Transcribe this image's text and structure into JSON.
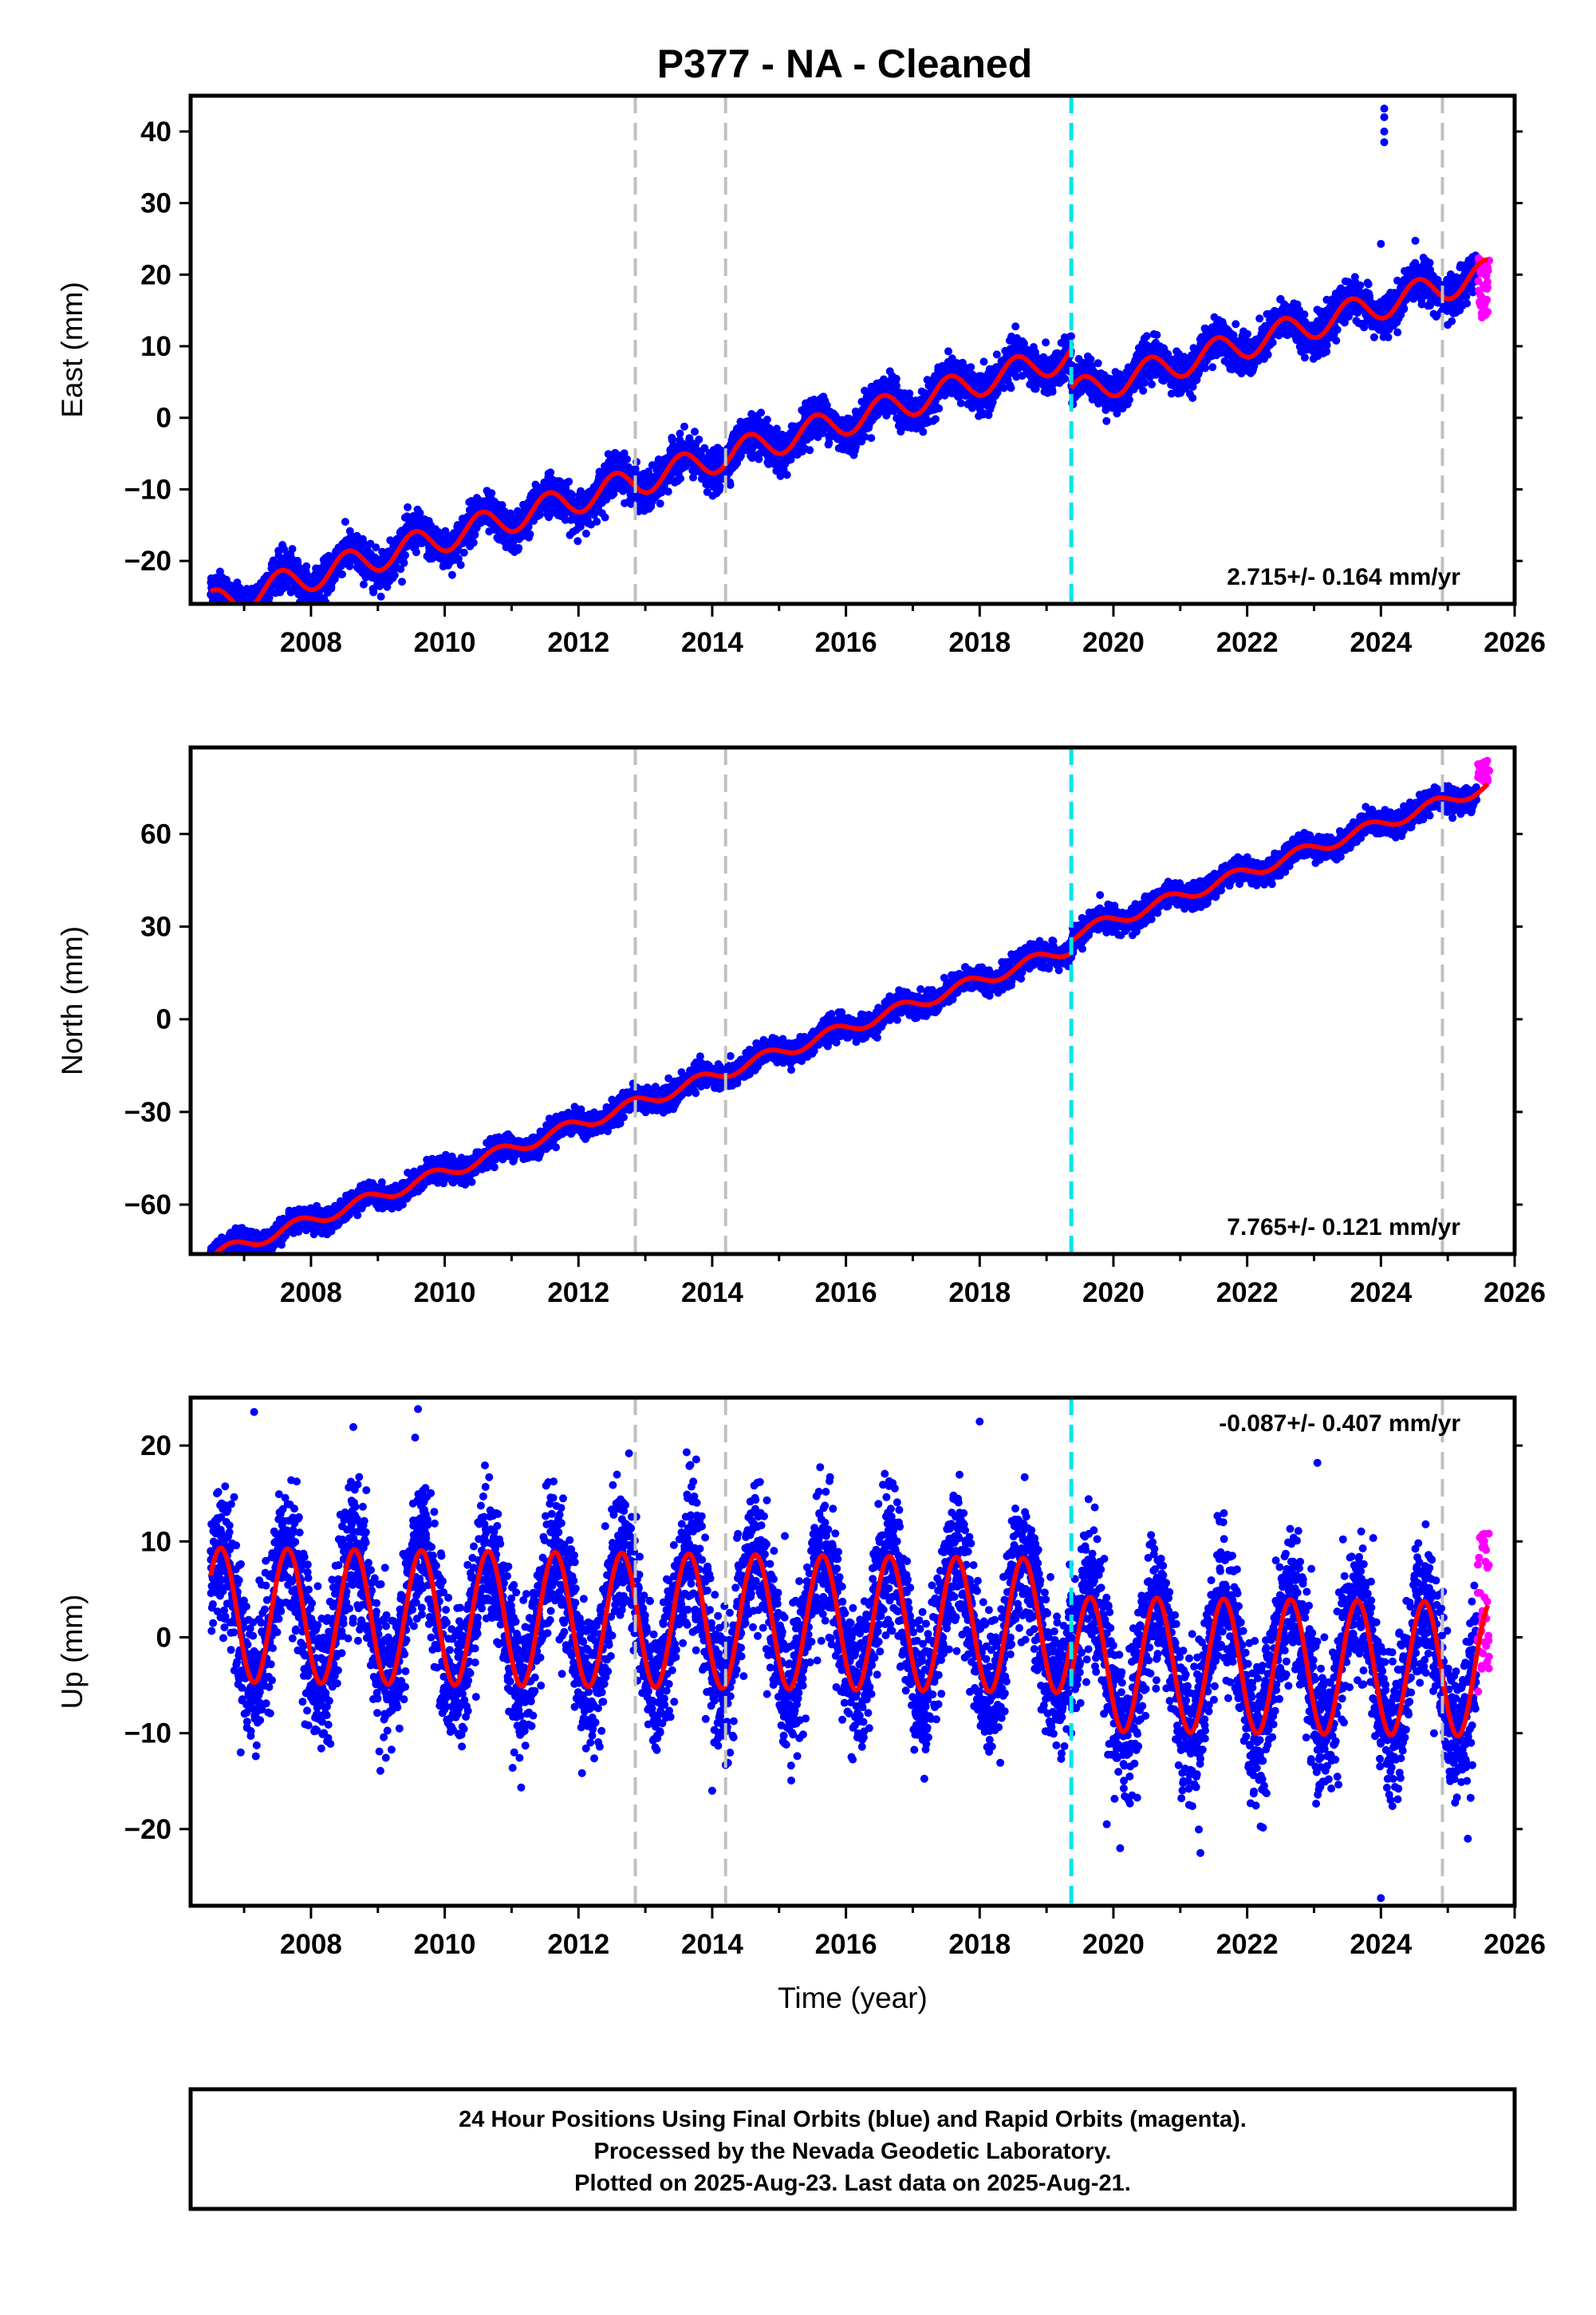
{
  "title": "P377  - NA - Cleaned",
  "footer": {
    "lines": [
      "24 Hour Positions Using Final Orbits (blue) and Rapid Orbits (magenta).",
      "Processed by the Nevada Geodetic Laboratory.",
      "Plotted on 2025-Aug-23. Last data on 2025-Aug-21."
    ]
  },
  "colors": {
    "final_orbits": "#0000ff",
    "rapid_orbits": "#ff00ff",
    "model_fit": "#ff0000",
    "equipment_change": "#c0c0c0",
    "earthquake": "#00e5ee"
  },
  "chart_data": [
    {
      "type": "scatter",
      "panel": "east",
      "ylabel": "East (mm)",
      "xlabel": "",
      "xlim": [
        2006.2,
        2026.0
      ],
      "ylim": [
        -26,
        45
      ],
      "x_ticks": [
        "2008",
        "2010",
        "2012",
        "2014",
        "2016",
        "2018",
        "2020",
        "2022",
        "2024",
        "2026"
      ],
      "y_ticks": [
        "−20",
        "−10",
        "0",
        "10",
        "20",
        "30",
        "40"
      ],
      "y_tick_values": [
        -20,
        -10,
        0,
        10,
        20,
        30,
        40
      ],
      "rate_label": "2.715+/- 0.164 mm/yr",
      "rate_position": "bottom-right",
      "model": {
        "start": 2006.5,
        "end": 2025.6,
        "ref_year": 2016.0,
        "offset": -0.4,
        "rate": 2.715,
        "seasonal_amp": 2.0,
        "seasonal_phase": 0.3,
        "steps": [
          {
            "x": 2019.37,
            "dy": -5.5
          }
        ],
        "noise": 1.3
      },
      "rapid_points": {
        "start": 2025.45,
        "end": 2025.62,
        "y_min": 14,
        "y_max": 22.5
      },
      "outliers": [
        [
          2024.05,
          43.2
        ],
        [
          2024.05,
          42.0
        ],
        [
          2024.05,
          40.0
        ],
        [
          2024.05,
          38.5
        ],
        [
          2024.0,
          24.3
        ]
      ],
      "equipment_changes": [
        2012.85,
        2014.2,
        2024.92
      ],
      "earthquakes": [
        2019.37
      ]
    },
    {
      "type": "scatter",
      "panel": "north",
      "ylabel": "North (mm)",
      "xlabel": "",
      "xlim": [
        2006.2,
        2026.0
      ],
      "ylim": [
        -76,
        88
      ],
      "x_ticks": [
        "2008",
        "2010",
        "2012",
        "2014",
        "2016",
        "2018",
        "2020",
        "2022",
        "2024",
        "2026"
      ],
      "y_ticks": [
        "−60",
        "−30",
        "0",
        "30",
        "60"
      ],
      "y_tick_values": [
        -60,
        -30,
        0,
        30,
        60
      ],
      "rate_label": "7.765+/- 0.121 mm/yr",
      "rate_position": "bottom-right",
      "model": {
        "start": 2006.5,
        "end": 2025.6,
        "ref_year": 2016.0,
        "offset": -3.0,
        "rate": 7.765,
        "seasonal_amp": 2.0,
        "seasonal_phase": 0.55,
        "steps": [
          {
            "x": 2019.37,
            "dy": 4.0
          }
        ],
        "noise": 1.8
      },
      "rapid_points": {
        "start": 2025.45,
        "end": 2025.62,
        "y_min": 77,
        "y_max": 84
      },
      "outliers": [],
      "equipment_changes": [
        2012.85,
        2014.2,
        2024.92
      ],
      "earthquakes": [
        2019.37
      ]
    },
    {
      "type": "scatter",
      "panel": "up",
      "ylabel": "Up (mm)",
      "xlabel": "Time (year)",
      "xlim": [
        2006.2,
        2026.0
      ],
      "ylim": [
        -28,
        25
      ],
      "x_ticks": [
        "2008",
        "2010",
        "2012",
        "2014",
        "2016",
        "2018",
        "2020",
        "2022",
        "2024",
        "2026"
      ],
      "y_ticks": [
        "−20",
        "−10",
        "0",
        "10",
        "20"
      ],
      "y_tick_values": [
        -20,
        -10,
        0,
        10,
        20
      ],
      "rate_label": "-0.087+/- 0.407 mm/yr",
      "rate_position": "top-right",
      "model": {
        "start": 2006.5,
        "end": 2025.6,
        "ref_year": 2016.0,
        "offset": 1.5,
        "rate": -0.087,
        "seasonal_amp": 7.0,
        "seasonal_phase": 0.4,
        "steps": [
          {
            "x": 2019.37,
            "dy": -4.0
          }
        ],
        "noise": 3.6
      },
      "rapid_points": {
        "start": 2025.45,
        "end": 2025.62,
        "y_min": -7,
        "y_max": 12
      },
      "outliers": [
        [
          2007.15,
          23.5
        ],
        [
          2009.6,
          23.8
        ],
        [
          2018.0,
          22.5
        ],
        [
          2023.05,
          18.2
        ],
        [
          2024.0,
          -27.2
        ],
        [
          2020.1,
          -22.0
        ],
        [
          2021.3,
          -22.5
        ],
        [
          2014.0,
          -16.0
        ],
        [
          2019.9,
          -19.5
        ],
        [
          2025.3,
          -21.0
        ]
      ],
      "equipment_changes": [
        2012.85,
        2014.2,
        2024.92
      ],
      "earthquakes": [
        2019.37
      ]
    }
  ]
}
